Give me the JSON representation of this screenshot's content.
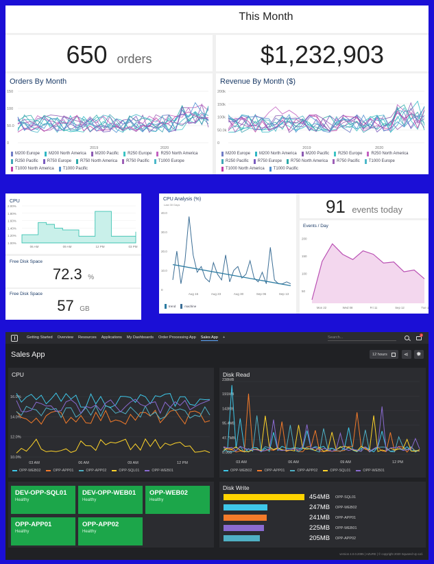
{
  "top": {
    "header": "This Month",
    "orders_count": "650",
    "orders_unit": "orders",
    "revenue_total": "$1,232,903",
    "orders_chart": {
      "title": "Orders By Month",
      "y_ticks": [
        "150",
        "100",
        "50.0",
        "0"
      ],
      "x_ticks": [
        "2019",
        "2020"
      ],
      "legend": [
        "M200 Europe",
        "M200 North America",
        "M200 Pacific",
        "R250 Europe",
        "R250 North America",
        "R250 Pacific",
        "R750 Europe",
        "R750 North America",
        "R750 Pacific",
        "T1000 Europe",
        "T1000 North America",
        "T1000 Pacific"
      ]
    },
    "revenue_chart": {
      "title": "Revenue By Month ($)",
      "y_ticks": [
        "200k",
        "150k",
        "100k",
        "50.0k",
        "0"
      ],
      "x_ticks": [
        "2019",
        "2020"
      ],
      "legend": [
        "M200 Europe",
        "M200 North America",
        "M200 Pacific",
        "R250 Europe",
        "R250 North America",
        "R250 Pacific",
        "R750 Europe",
        "R750 North America",
        "R750 Pacific",
        "T1000 Europe",
        "T1000 North America",
        "T1000 Pacific"
      ]
    },
    "legend_colors": [
      "#6f7cc6",
      "#2fb7c4",
      "#8d5bb3",
      "#3cc4c4",
      "#c261c0",
      "#3fa5b5",
      "#7a5abf",
      "#2da9a9",
      "#9d5fb6",
      "#4bb8c9",
      "#c03ea6",
      "#4e8fd1"
    ]
  },
  "mid_left": {
    "cpu_title": "CPU",
    "cpu_y_ticks": [
      "2.00%",
      "1.80%",
      "1.60%",
      "1.40%",
      "1.20%",
      "1.00%"
    ],
    "cpu_x_ticks": [
      "06 AM",
      "09 AM",
      "12 PM",
      "03 PM"
    ],
    "disk_title": "Free Disk Space",
    "disk_value": "72.3",
    "disk_unit": "%",
    "disk2_title": "Free Disk Space",
    "disk2_value": "57",
    "disk2_unit": "GB"
  },
  "mid_right": {
    "cpu_analysis_title": "CPU Analysis (%)",
    "cpu_analysis_sub": "Last 30 Days",
    "y_ticks": [
      "40.0",
      "30.0",
      "20.0",
      "10.0",
      "0"
    ],
    "x_ticks": [
      "Aug 16",
      "Aug 23",
      "Aug 30",
      "Sep 06",
      "Sep 13"
    ],
    "legend": [
      "trend",
      "machine"
    ],
    "events_count": "91",
    "events_unit": "events today",
    "events_chart_title": "Events / Day",
    "events_y_ticks": [
      "200",
      "150",
      "100",
      "50"
    ],
    "events_x_ticks": [
      "Mon 22",
      "Wed 08",
      "Fri 11",
      "Sep 12",
      "Tue 13"
    ]
  },
  "dashboard": {
    "nav_items": [
      "Getting Started",
      "Overview",
      "Resources",
      "Applications",
      "My Dashboards",
      "Order Processing App",
      "Sales App",
      "+"
    ],
    "active_nav": "Sales App",
    "search_placeholder": "Search...",
    "notification_count": "2",
    "title": "Sales App",
    "timeframe": "12 hours",
    "cpu_panel": {
      "title": "CPU",
      "y_ticks": [
        "16.0%",
        "14.0%",
        "12.0%",
        "10.0%"
      ],
      "x_ticks": [
        "03 AM",
        "06 AM",
        "09 AM",
        "12 PM"
      ],
      "legend": [
        "OPP-WEB02",
        "OPP-APP01",
        "OPP-APP02",
        "OPP-SQL01",
        "OPP-WEB01"
      ]
    },
    "disk_read_panel": {
      "title": "Disk Read",
      "y_ticks": [
        "238MB",
        "191MB",
        "143MB",
        "95.4MB",
        "47.7MB",
        "0.00B"
      ],
      "x_ticks": [
        "03 AM",
        "06 AM",
        "09 AM",
        "12 PM"
      ],
      "legend": [
        "OPP-WEB02",
        "OPP-APP01",
        "OPP-APP02",
        "OPP-SQL01",
        "OPP-WEB01"
      ]
    },
    "series_colors": [
      "#3ec7e8",
      "#f47b2a",
      "#4fb0c4",
      "#ffd42a",
      "#8a6bd1"
    ],
    "tiles": [
      {
        "name": "DEV-OPP-SQL01",
        "status": "Healthy"
      },
      {
        "name": "DEV-OPP-WEB01",
        "status": "Healthy"
      },
      {
        "name": "OPP-WEB02",
        "status": "Healthy"
      },
      {
        "name": "OPP-APP01",
        "status": "Healthy"
      },
      {
        "name": "OPP-APP02",
        "status": "Healthy"
      }
    ],
    "disk_write": {
      "title": "Disk Write",
      "rows": [
        {
          "value": "454MB",
          "name": "OPP-SQL01",
          "fraction": 1.0,
          "color": "#ffd400"
        },
        {
          "value": "247MB",
          "name": "OPP-WEB02",
          "fraction": 0.54,
          "color": "#3ec7e8"
        },
        {
          "value": "241MB",
          "name": "OPP-APP01",
          "fraction": 0.53,
          "color": "#f47b2a"
        },
        {
          "value": "225MB",
          "name": "OPP-WEB01",
          "fraction": 0.5,
          "color": "#8a6bd1"
        },
        {
          "value": "205MB",
          "name": "OPP-APP02",
          "fraction": 0.45,
          "color": "#4fb0c4"
        }
      ]
    },
    "footer": "version 4.0.0.2095 | AZURE | © copyright 2020 Squared Up Ltd."
  }
}
